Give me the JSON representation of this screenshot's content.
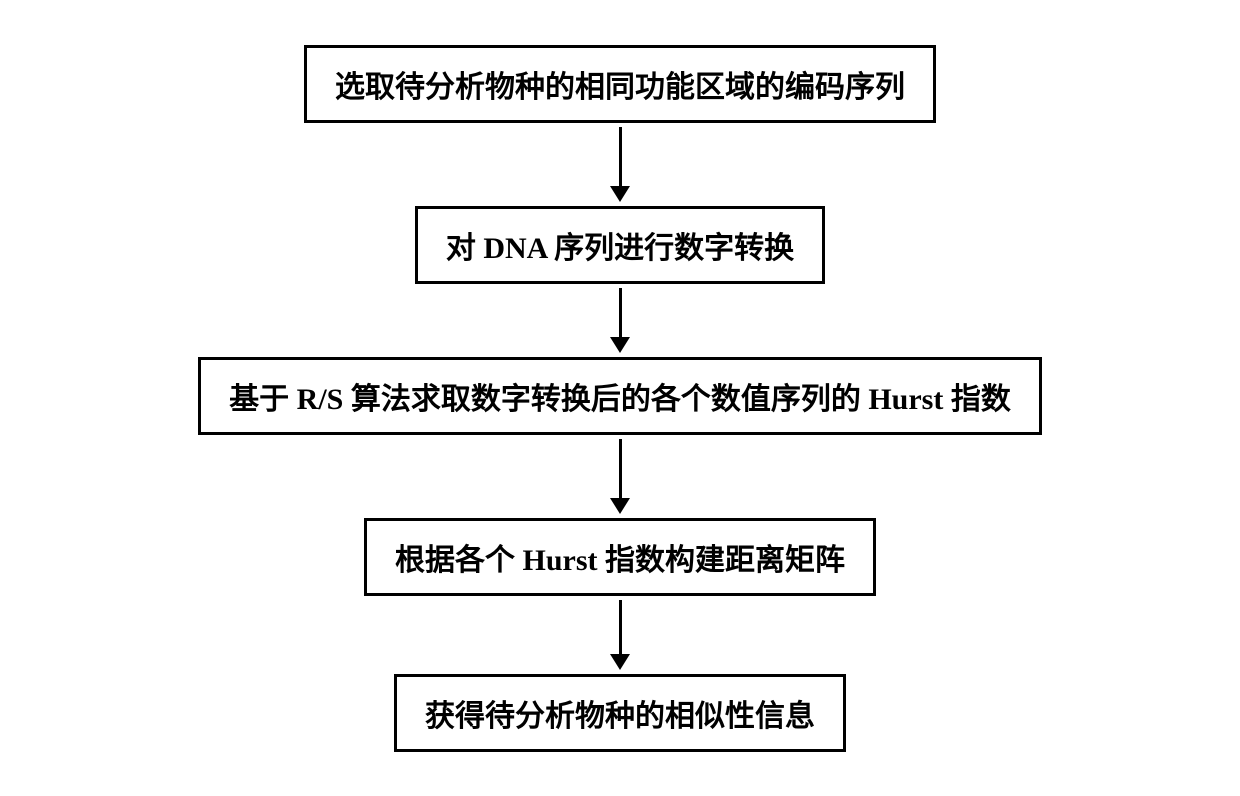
{
  "flowchart": {
    "boxes": [
      {
        "label": "选取待分析物种的相同功能区域的编码序列"
      },
      {
        "label": "对 DNA 序列进行数字转换"
      },
      {
        "label": "基于 R/S 算法求取数字转换后的各个数值序列的 Hurst 指数"
      },
      {
        "label": "根据各个 Hurst 指数构建距离矩阵"
      },
      {
        "label": "获得待分析物种的相似性信息"
      }
    ],
    "arrow_shaft_heights": [
      60,
      50,
      60,
      55
    ],
    "colors": {
      "box_border": "#000000",
      "box_bg": "#ffffff",
      "text": "#000000",
      "arrow": "#000000",
      "page_bg": "#ffffff"
    },
    "box_border_width": 3,
    "font_size": 30,
    "font_weight": "bold"
  }
}
